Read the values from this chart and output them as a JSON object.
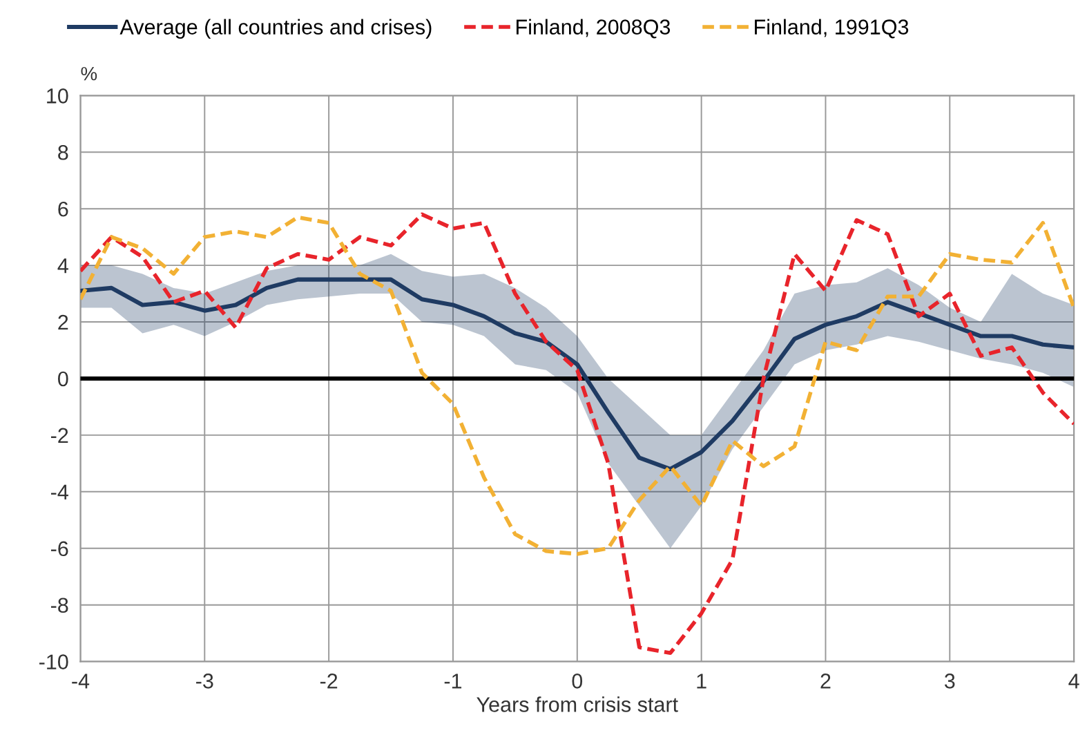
{
  "chart_data": {
    "type": "line",
    "xlabel": "Years from crisis start",
    "ylabel": "%",
    "x": [
      -4,
      -3.75,
      -3.5,
      -3.25,
      -3,
      -2.75,
      -2.5,
      -2.25,
      -2,
      -1.75,
      -1.5,
      -1.25,
      -1,
      -0.75,
      -0.5,
      -0.25,
      0,
      0.25,
      0.5,
      0.75,
      1,
      1.25,
      1.5,
      1.75,
      2,
      2.25,
      2.5,
      2.75,
      3,
      3.25,
      3.5,
      3.75,
      4
    ],
    "series": [
      {
        "name": "Average (all countries and crises)",
        "color": "#1f3b63",
        "line_style": "solid",
        "values": [
          3.1,
          3.2,
          2.6,
          2.7,
          2.4,
          2.6,
          3.2,
          3.5,
          3.5,
          3.5,
          3.5,
          2.8,
          2.6,
          2.2,
          1.6,
          1.3,
          0.5,
          -1.2,
          -2.8,
          -3.2,
          -2.6,
          -1.5,
          -0.1,
          1.4,
          1.9,
          2.2,
          2.7,
          2.3,
          1.9,
          1.5,
          1.5,
          1.2,
          1.1
        ],
        "lower": [
          2.5,
          2.5,
          1.6,
          1.9,
          1.5,
          2.0,
          2.6,
          2.8,
          2.9,
          3.0,
          3.0,
          2.0,
          1.9,
          1.5,
          0.5,
          0.3,
          -0.5,
          -3.0,
          -4.5,
          -6.0,
          -4.5,
          -2.5,
          -1.0,
          0.5,
          1.0,
          1.2,
          1.5,
          1.3,
          1.0,
          0.7,
          0.5,
          0.2,
          -0.3
        ],
        "upper": [
          4.0,
          4.0,
          3.7,
          3.2,
          3.0,
          3.4,
          3.8,
          4.0,
          4.0,
          4.0,
          4.4,
          3.8,
          3.6,
          3.7,
          3.2,
          2.5,
          1.5,
          0.0,
          -1.0,
          -2.0,
          -2.0,
          -0.5,
          1.0,
          3.0,
          3.3,
          3.4,
          3.9,
          3.3,
          2.5,
          2.0,
          3.7,
          3.0,
          2.6
        ]
      },
      {
        "name": "Finland, 2008Q3",
        "color": "#e8242b",
        "line_style": "dashed",
        "values": [
          3.8,
          5.0,
          4.3,
          2.7,
          3.1,
          1.8,
          3.9,
          4.4,
          4.2,
          5.0,
          4.7,
          5.8,
          5.3,
          5.5,
          3.0,
          1.3,
          0.3,
          -3.0,
          -9.5,
          -9.7,
          -8.3,
          -6.4,
          0.0,
          4.4,
          3.1,
          5.6,
          5.1,
          2.2,
          3.0,
          0.8,
          1.1,
          -0.5,
          -1.6
        ]
      },
      {
        "name": "Finland, 1991Q3",
        "color": "#f2b134",
        "line_style": "dashed",
        "values": [
          2.8,
          5.0,
          4.6,
          3.7,
          5.0,
          5.2,
          5.0,
          5.7,
          5.5,
          3.7,
          3.1,
          0.2,
          -0.9,
          -3.5,
          -5.5,
          -6.1,
          -6.2,
          -6.0,
          -4.3,
          -3.1,
          -4.5,
          -2.2,
          -3.1,
          -2.4,
          1.3,
          1.0,
          2.9,
          2.9,
          4.4,
          4.2,
          4.1,
          5.5,
          2.5
        ]
      }
    ],
    "xlim": [
      -4,
      4
    ],
    "xticks": [
      -4,
      -3,
      -2,
      -1,
      0,
      1,
      2,
      3,
      4
    ],
    "ylim": [
      -10,
      10
    ],
    "yticks": [
      -10,
      -8,
      -6,
      -4,
      -2,
      0,
      2,
      4,
      6,
      8,
      10
    ],
    "ref_lines": [
      {
        "axis": "y",
        "value": 0,
        "color": "#000000",
        "line_style": "solid"
      }
    ],
    "grid": true,
    "legend": "top",
    "marker": "none"
  }
}
